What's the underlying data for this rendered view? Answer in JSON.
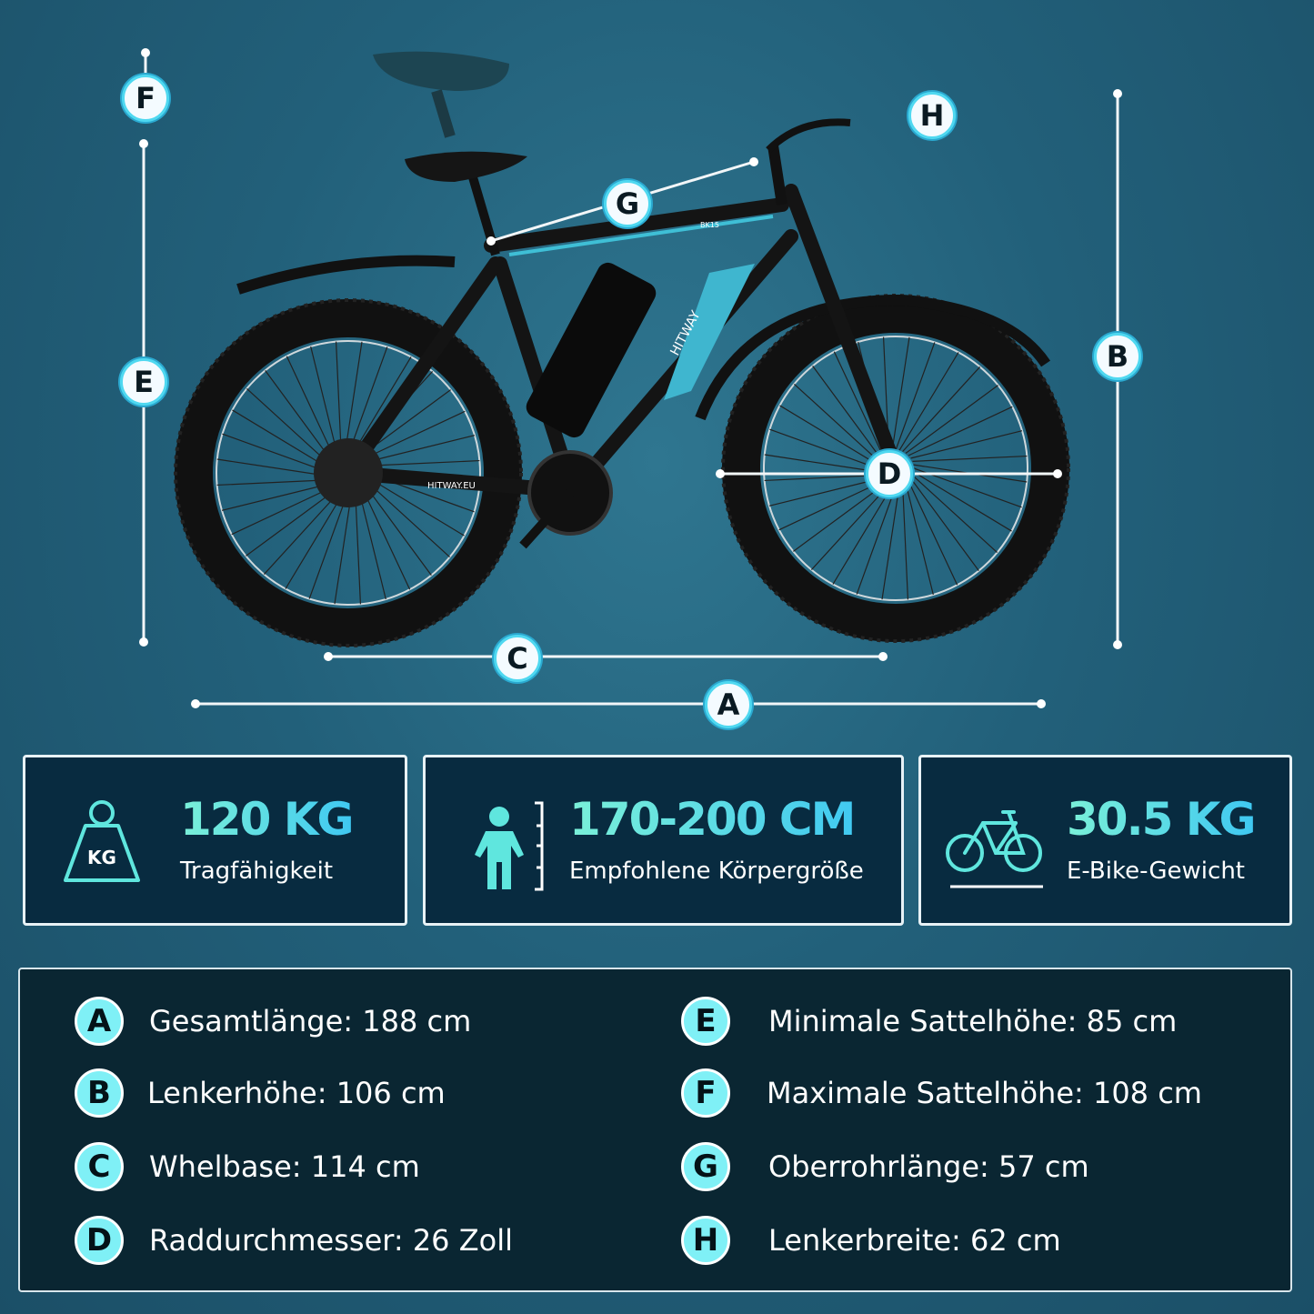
{
  "diagram": {
    "dimension_labels": [
      "A",
      "B",
      "C",
      "D",
      "E",
      "F",
      "G",
      "H"
    ],
    "bike_branding": {
      "frame_logo": "HITWAY",
      "chainstay_text": "HITWAY.EU",
      "model": "BK15"
    }
  },
  "cards": [
    {
      "icon": "kg-weight-icon",
      "value": "120 KG",
      "label": "Tragfähigkeit"
    },
    {
      "icon": "person-height-icon",
      "value": "170-200 CM",
      "label": "Empfohlene Körpergröße"
    },
    {
      "icon": "bicycle-icon",
      "value": "30.5 KG",
      "label": "E-Bike-Gewicht"
    }
  ],
  "specs": [
    {
      "letter": "A",
      "text": "Gesamtlänge: 188 cm"
    },
    {
      "letter": "B",
      "text": "Lenkerhöhe: 106 cm"
    },
    {
      "letter": "C",
      "text": "Whelbase: 114 cm"
    },
    {
      "letter": "D",
      "text": "Raddurchmesser: 26 Zoll"
    },
    {
      "letter": "E",
      "text": "Minimale Sattelhöhe: 85 cm"
    },
    {
      "letter": "F",
      "text": "Maximale Sattelhöhe: 108 cm"
    },
    {
      "letter": "G",
      "text": "Oberrohrlänge: 57 cm"
    },
    {
      "letter": "H",
      "text": "Lenkerbreite: 62 cm"
    }
  ],
  "colors": {
    "accent": "#4fd8f0",
    "background": "#22607a",
    "panel": "#0a2632"
  }
}
